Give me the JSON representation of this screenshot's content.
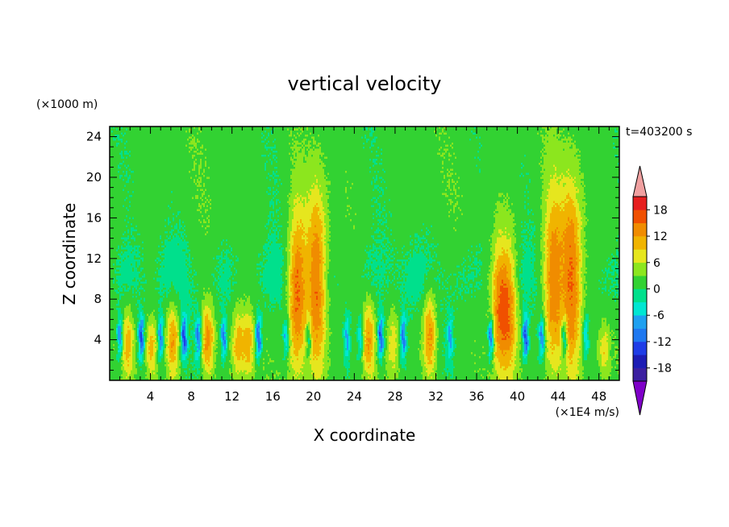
{
  "chart_data": {
    "type": "heatmap",
    "title": "vertical velocity",
    "xlabel": "X coordinate",
    "ylabel": "Z coordinate",
    "x_unit": "(×1E4 m/s)",
    "y_unit": "(×1000 m)",
    "time_label": "t=403200 s",
    "xlim": [
      0,
      50
    ],
    "ylim": [
      0,
      25
    ],
    "x_ticks": [
      4,
      8,
      12,
      16,
      20,
      24,
      28,
      32,
      36,
      40,
      44,
      48
    ],
    "y_ticks": [
      4,
      8,
      12,
      16,
      20,
      24
    ],
    "colorbar": {
      "levels": [
        -21,
        -18,
        -15,
        -12,
        -9,
        -6,
        -3,
        0,
        3,
        6,
        9,
        12,
        15,
        18,
        21
      ],
      "tick_labels": [
        "18",
        "12",
        "6",
        "0",
        "-6",
        "-12",
        "-18"
      ],
      "colors": [
        "#7f00c8",
        "#3b1fa0",
        "#1c1cb4",
        "#1e3ce6",
        "#1e78f0",
        "#1ea0f0",
        "#00e6d2",
        "#00e08c",
        "#32d232",
        "#8ce61e",
        "#e6e61e",
        "#f0b400",
        "#f08c00",
        "#f05000",
        "#e61e1e",
        "#f0a0a0"
      ]
    },
    "updraft_columns": [
      {
        "x": 1.8,
        "peak": 9,
        "top": 8
      },
      {
        "x": 4.1,
        "peak": 9,
        "top": 7
      },
      {
        "x": 6.2,
        "peak": 11,
        "top": 9
      },
      {
        "x": 9.6,
        "peak": 12,
        "top": 9
      },
      {
        "x": 12.6,
        "peak": 9,
        "top": 8
      },
      {
        "x": 13.6,
        "peak": 9,
        "top": 8
      },
      {
        "x": 18.4,
        "peak": 15,
        "top": 19
      },
      {
        "x": 20.3,
        "peak": 15,
        "top": 21
      },
      {
        "x": 25.4,
        "peak": 10,
        "top": 9
      },
      {
        "x": 27.8,
        "peak": 7,
        "top": 8
      },
      {
        "x": 31.4,
        "peak": 12,
        "top": 10
      },
      {
        "x": 38.2,
        "peak": 12,
        "top": 16
      },
      {
        "x": 39.2,
        "peak": 12,
        "top": 16
      },
      {
        "x": 43.5,
        "peak": 14,
        "top": 21
      },
      {
        "x": 45.3,
        "peak": 15,
        "top": 22
      },
      {
        "x": 48.5,
        "peak": 7,
        "top": 6
      }
    ],
    "downdraft_columns": [
      {
        "x": 1.0,
        "min": -12
      },
      {
        "x": 3.1,
        "min": -15
      },
      {
        "x": 5.0,
        "min": -12
      },
      {
        "x": 7.3,
        "min": -15
      },
      {
        "x": 8.7,
        "min": -12
      },
      {
        "x": 11.2,
        "min": -12
      },
      {
        "x": 14.6,
        "min": -15
      },
      {
        "x": 17.3,
        "min": -9
      },
      {
        "x": 19.5,
        "min": -9
      },
      {
        "x": 23.3,
        "min": -9
      },
      {
        "x": 24.6,
        "min": -9
      },
      {
        "x": 26.6,
        "min": -15
      },
      {
        "x": 28.8,
        "min": -12
      },
      {
        "x": 33.4,
        "min": -9
      },
      {
        "x": 37.4,
        "min": -15
      },
      {
        "x": 40.8,
        "min": -15
      },
      {
        "x": 42.4,
        "min": -12
      },
      {
        "x": 44.6,
        "min": -12
      },
      {
        "x": 46.7,
        "min": -9
      }
    ]
  }
}
